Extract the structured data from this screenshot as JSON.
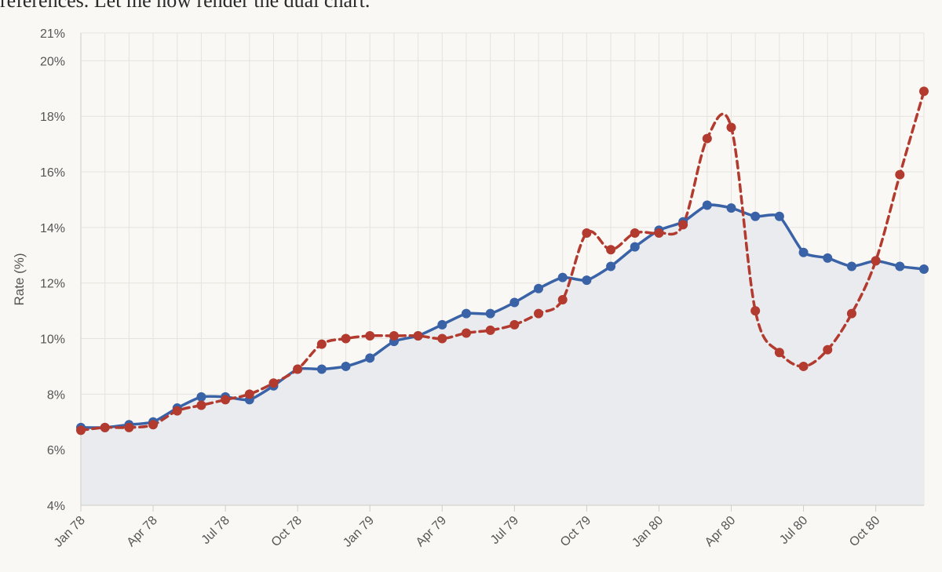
{
  "page": {
    "top_text": "references. Let me now render the dual chart."
  },
  "chart_data": {
    "type": "line",
    "ylabel": "Rate (%)",
    "xlabel": "",
    "ylim": [
      4,
      21
    ],
    "y_ticks": [
      4,
      6,
      8,
      10,
      12,
      14,
      16,
      18,
      20,
      21
    ],
    "y_tick_labels": [
      "4%",
      "6%",
      "8%",
      "10%",
      "12%",
      "14%",
      "16%",
      "18%",
      "20%",
      "21%"
    ],
    "x": [
      "Jan 78",
      "Feb 78",
      "Mar 78",
      "Apr 78",
      "May 78",
      "Jun 78",
      "Jul 78",
      "Aug 78",
      "Sep 78",
      "Oct 78",
      "Nov 78",
      "Dec 78",
      "Jan 79",
      "Feb 79",
      "Mar 79",
      "Apr 79",
      "May 79",
      "Jun 79",
      "Jul 79",
      "Aug 79",
      "Sep 79",
      "Oct 79",
      "Nov 79",
      "Dec 79",
      "Jan 80",
      "Feb 80",
      "Mar 80",
      "Apr 80",
      "May 80",
      "Jun 80",
      "Jul 80",
      "Aug 80",
      "Sep 80",
      "Oct 80",
      "Nov 80",
      "Dec 80"
    ],
    "x_tick_labels": [
      "Jan 78",
      "Apr 78",
      "Jul 78",
      "Oct 78",
      "Jan 79",
      "Apr 79",
      "Jul 79",
      "Oct 79",
      "Jan 80",
      "Apr 80",
      "Jul 80",
      "Oct 80"
    ],
    "grid": true,
    "series": [
      {
        "color": "#3a62a7",
        "style": "solid",
        "area": true,
        "area_color": "#e9ebef",
        "values": [
          6.8,
          6.8,
          6.9,
          7.0,
          7.5,
          7.9,
          7.9,
          7.8,
          8.3,
          8.9,
          8.9,
          9.0,
          9.3,
          9.9,
          10.1,
          10.5,
          10.9,
          10.9,
          11.3,
          11.8,
          12.2,
          12.1,
          12.6,
          13.3,
          13.9,
          14.2,
          14.8,
          14.7,
          14.4,
          14.4,
          13.1,
          12.9,
          12.6,
          12.8,
          12.6,
          12.5
        ]
      },
      {
        "color": "#b23a2e",
        "style": "dashed",
        "area": false,
        "values": [
          6.7,
          6.8,
          6.8,
          6.9,
          7.4,
          7.6,
          7.8,
          8.0,
          8.4,
          8.9,
          9.8,
          10.0,
          10.1,
          10.1,
          10.1,
          10.0,
          10.2,
          10.3,
          10.5,
          10.9,
          11.4,
          13.8,
          13.2,
          13.8,
          13.8,
          14.1,
          17.2,
          17.6,
          11.0,
          9.5,
          9.0,
          9.6,
          10.9,
          12.8,
          15.9,
          18.9
        ]
      }
    ]
  }
}
